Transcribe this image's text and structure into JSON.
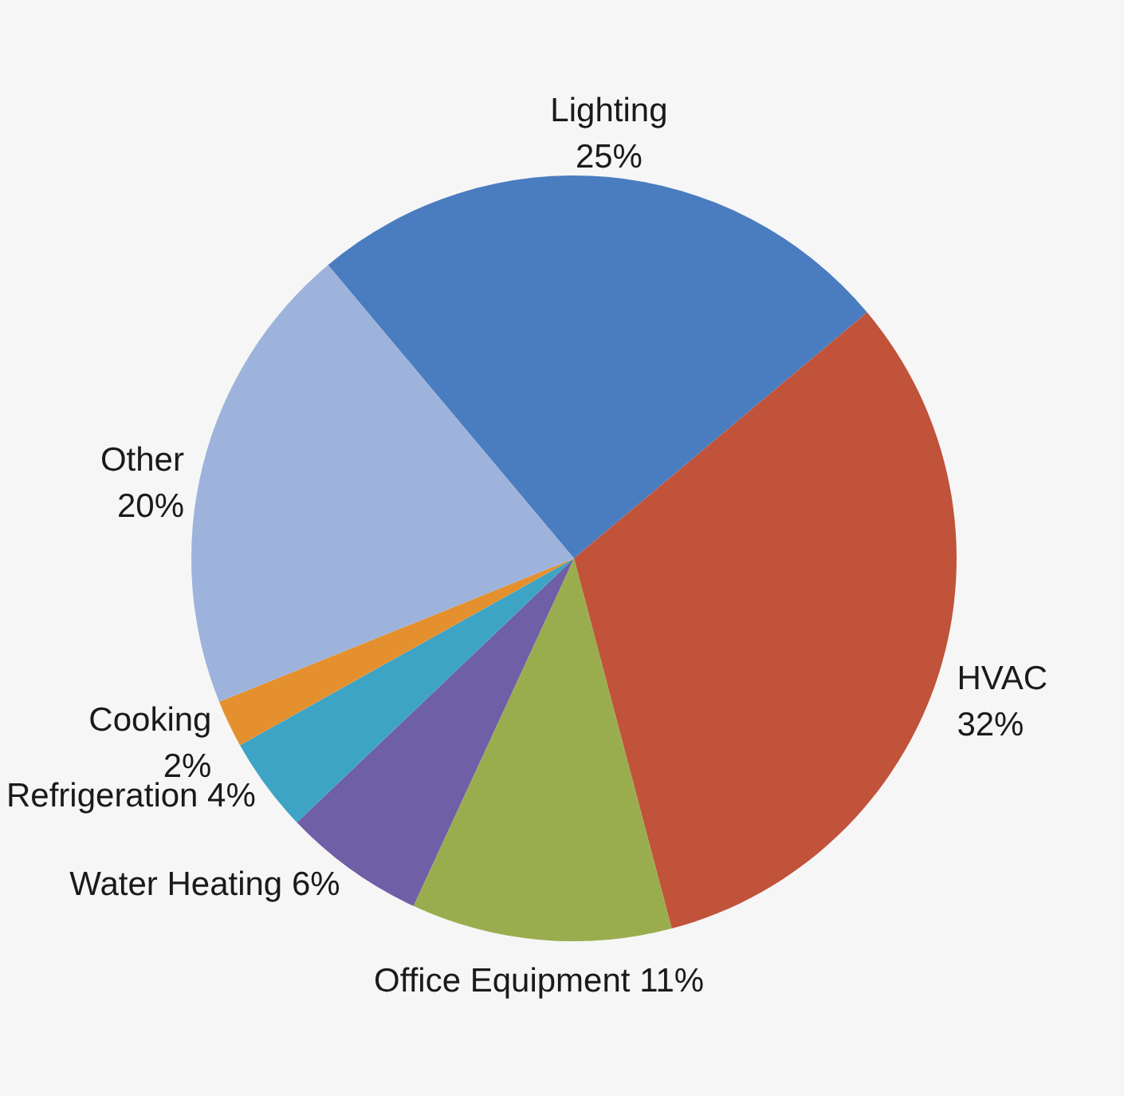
{
  "chart_data": {
    "type": "pie",
    "categories": [
      "Lighting",
      "HVAC",
      "Office Equipment",
      "Water Heating",
      "Refrigeration",
      "Cooking",
      "Other"
    ],
    "values": [
      25,
      32,
      11,
      6,
      4,
      2,
      20
    ],
    "colors": [
      "#4a7cc0",
      "#c0533a",
      "#9aad4e",
      "#6f5fa6",
      "#3ea4c6",
      "#e4902e",
      "#9db3dc"
    ],
    "value_labels": [
      "25%",
      "32%",
      "11%",
      "6%",
      "4%",
      "2%",
      "20%"
    ]
  }
}
